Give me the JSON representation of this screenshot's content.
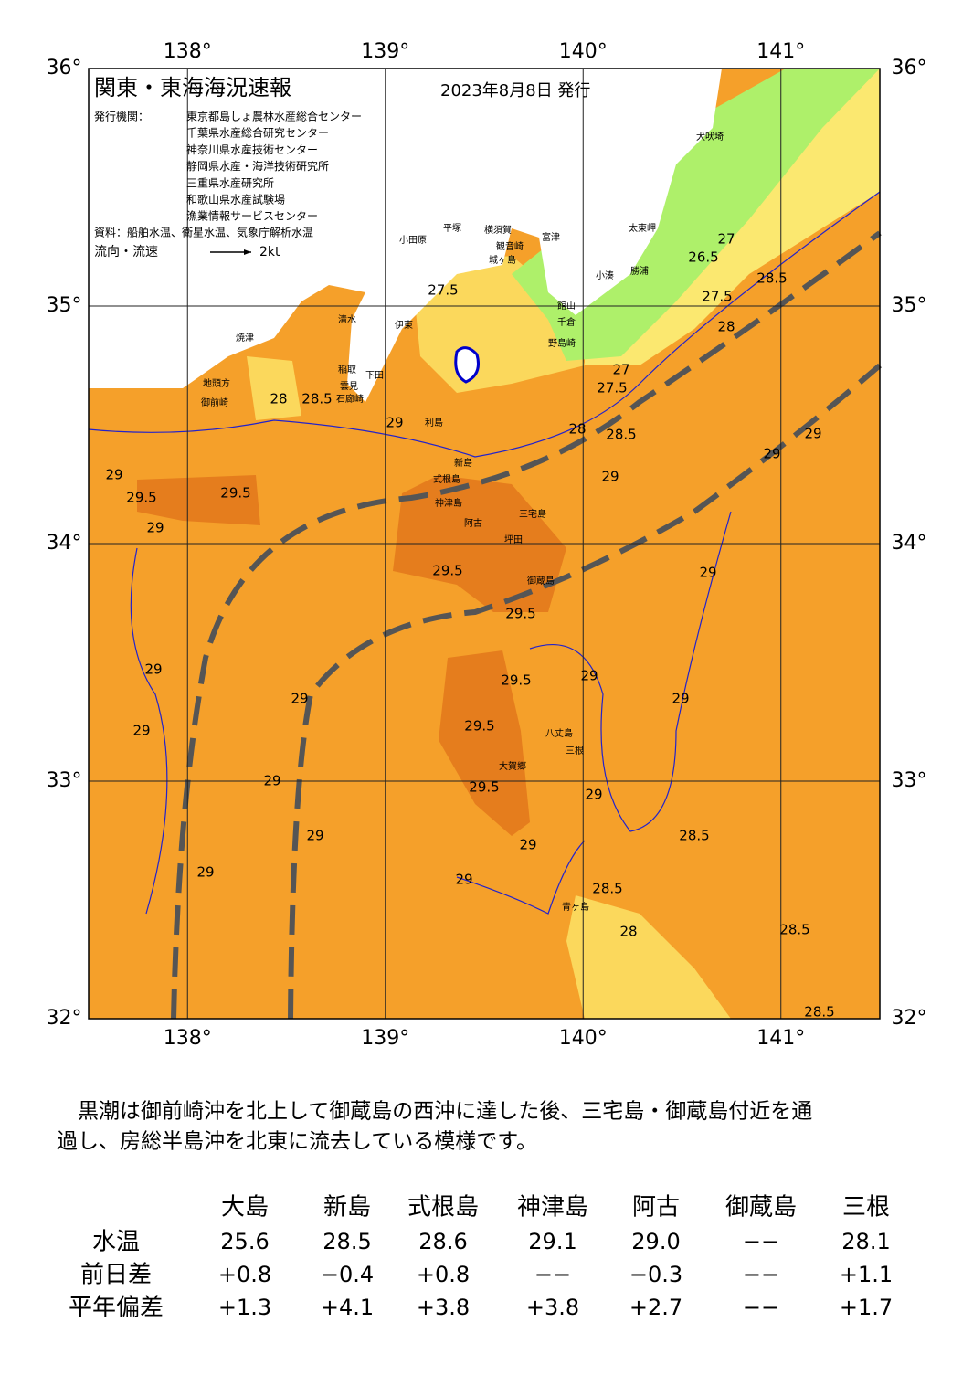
{
  "header": {
    "title": "関東・東海海況速報",
    "date": "2023年8月8日 発行",
    "issuer_label": "発行機関：",
    "issuers": [
      "東京都島しょ農林水産総合センター",
      "千葉県水産総合研究センター",
      "神奈川県水産技術センター",
      "静岡県水産・海洋技術研究所",
      "三重県水産研究所",
      "和歌山県水産試験場",
      "漁業情報サービスセンター"
    ],
    "source": "資料：船舶水温、衛星水温、気象庁解析水温",
    "flow_legend": "流向・流速",
    "flow_scale": "2kt"
  },
  "map": {
    "xlim": [
      137.5,
      141.5
    ],
    "ylim": [
      32,
      36
    ],
    "xticks": [
      {
        "value": 138,
        "label": "138°"
      },
      {
        "value": 139,
        "label": "139°"
      },
      {
        "value": 140,
        "label": "140°"
      },
      {
        "value": 141,
        "label": "141°"
      }
    ],
    "yticks": [
      {
        "value": 32,
        "label": "32°"
      },
      {
        "value": 33,
        "label": "33°"
      },
      {
        "value": 34,
        "label": "34°"
      },
      {
        "value": 35,
        "label": "35°"
      },
      {
        "value": 36,
        "label": "36°"
      }
    ],
    "places": [
      "犬吠埼",
      "太東岬",
      "勝浦",
      "小湊",
      "館山",
      "千倉",
      "野島崎",
      "富津",
      "観音崎",
      "城ヶ島",
      "横須賀",
      "平塚",
      "小田原",
      "伊東",
      "稲取",
      "下田",
      "石廊崎",
      "雲見",
      "清水",
      "焼津",
      "地頭方",
      "御前崎",
      "利島",
      "新島",
      "式根島",
      "神津島",
      "三宅島",
      "阿古",
      "坪田",
      "御蔵島",
      "八丈島",
      "三根",
      "大賀郷",
      "青ヶ島"
    ],
    "contour_labels": [
      "27.5",
      "28",
      "28.5",
      "29",
      "29",
      "29.5",
      "29.5",
      "29",
      "28",
      "28.5",
      "27.5",
      "27",
      "26.5",
      "27",
      "27.5",
      "28",
      "28.5",
      "29",
      "29",
      "29",
      "29",
      "29.5",
      "29.5",
      "29",
      "29",
      "29",
      "29",
      "29",
      "29",
      "29.5",
      "29",
      "29",
      "29.5",
      "29.5",
      "29",
      "28.5",
      "29",
      "29",
      "28.5",
      "28",
      "28.5",
      "28.5"
    ]
  },
  "description": [
    "　黒潮は御前崎沖を北上して御蔵島の西沖に達した後、三宅島・御蔵島付近を通",
    "過し、房総半島沖を北東に流去している模様です。"
  ],
  "table": {
    "columns": [
      "大島",
      "新島",
      "式根島",
      "神津島",
      "阿古",
      "御蔵島",
      "三根"
    ],
    "rows": [
      {
        "label": "水温",
        "values": [
          "25.6",
          "28.5",
          "28.6",
          "29.1",
          "29.0",
          "−−",
          "28.1"
        ]
      },
      {
        "label": "前日差",
        "values": [
          "+0.8",
          "−0.4",
          "+0.8",
          "−−",
          "−0.3",
          "−−",
          "+1.1"
        ]
      },
      {
        "label": "平年偏差",
        "values": [
          "+1.3",
          "+4.1",
          "+3.8",
          "+3.8",
          "+2.7",
          "−−",
          "+1.7"
        ]
      }
    ]
  }
}
